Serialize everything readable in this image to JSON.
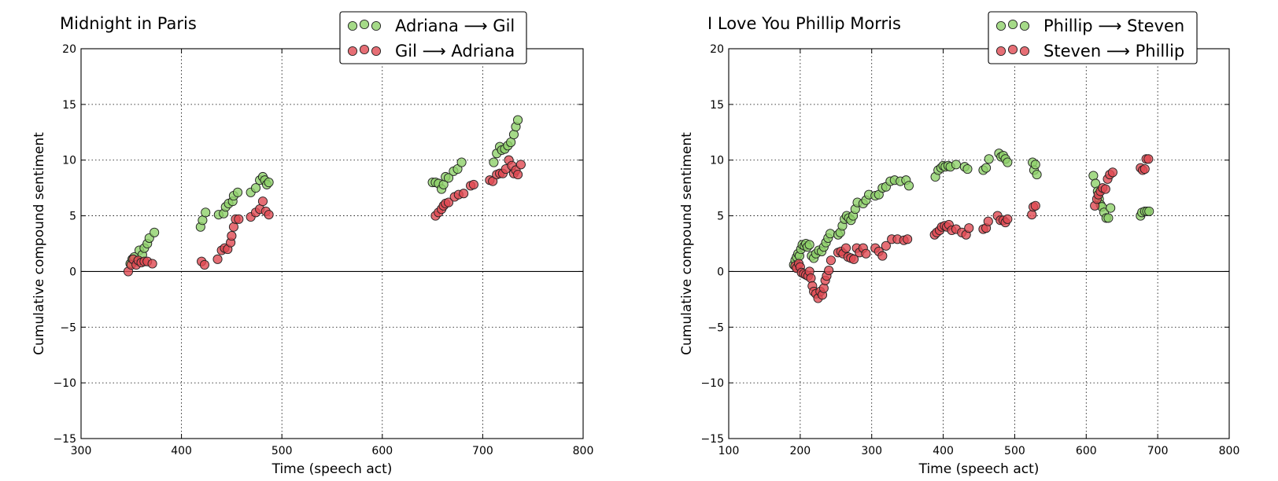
{
  "figure": {
    "background": "#ffffff",
    "series_colors": {
      "green": "#8fd16a",
      "red": "#e04a52"
    }
  },
  "chart_data": [
    {
      "type": "scatter",
      "title": "Midnight in Paris",
      "xlabel": "Time (speech act)",
      "ylabel": "Cumulative compound sentiment",
      "xlim": [
        300,
        800
      ],
      "ylim": [
        -15,
        20
      ],
      "xticks": [
        300,
        400,
        500,
        600,
        700,
        800
      ],
      "yticks": [
        -15,
        -10,
        -5,
        0,
        5,
        10,
        15,
        20
      ],
      "xtick_labels": [
        "300",
        "400",
        "500",
        "600",
        "700",
        "800"
      ],
      "ytick_labels": [
        "−15",
        "−10",
        "−5",
        "0",
        "5",
        "10",
        "15",
        "20"
      ],
      "grid": true,
      "zero_line": true,
      "legend_position": "upper-right",
      "series": [
        {
          "name": "Adriana ⟶ Gil",
          "color": "#8fd16a",
          "points": [
            [
              349,
              0.7
            ],
            [
              351,
              1.1
            ],
            [
              353,
              1.3
            ],
            [
              356,
              0.9
            ],
            [
              358,
              1.9
            ],
            [
              361,
              1.5
            ],
            [
              363,
              2.1
            ],
            [
              366,
              2.5
            ],
            [
              368,
              3.0
            ],
            [
              373,
              3.5
            ],
            [
              419,
              4.0
            ],
            [
              421,
              4.6
            ],
            [
              424,
              5.3
            ],
            [
              437,
              5.1
            ],
            [
              442,
              5.2
            ],
            [
              444,
              5.8
            ],
            [
              447,
              6.1
            ],
            [
              451,
              6.3
            ],
            [
              452,
              6.8
            ],
            [
              456,
              7.1
            ],
            [
              469,
              7.1
            ],
            [
              474,
              7.5
            ],
            [
              478,
              8.2
            ],
            [
              481,
              8.5
            ],
            [
              483,
              8.2
            ],
            [
              485,
              7.8
            ],
            [
              487,
              8.0
            ],
            [
              650,
              8.0
            ],
            [
              653,
              8.0
            ],
            [
              656,
              7.9
            ],
            [
              659,
              7.4
            ],
            [
              661,
              7.8
            ],
            [
              663,
              8.5
            ],
            [
              666,
              8.4
            ],
            [
              671,
              9.0
            ],
            [
              675,
              9.2
            ],
            [
              679,
              9.8
            ],
            [
              711,
              9.8
            ],
            [
              714,
              10.6
            ],
            [
              717,
              11.2
            ],
            [
              719,
              10.9
            ],
            [
              722,
              11.0
            ],
            [
              725,
              11.3
            ],
            [
              728,
              11.6
            ],
            [
              731,
              12.3
            ],
            [
              733,
              13.0
            ],
            [
              735,
              13.6
            ]
          ]
        },
        {
          "name": "Gil ⟶ Adriana",
          "color": "#e04a52",
          "points": [
            [
              347,
              0.0
            ],
            [
              350,
              0.6
            ],
            [
              352,
              1.1
            ],
            [
              355,
              0.6
            ],
            [
              357,
              1.0
            ],
            [
              360,
              0.8
            ],
            [
              363,
              0.9
            ],
            [
              366,
              0.9
            ],
            [
              371,
              0.7
            ],
            [
              420,
              0.9
            ],
            [
              423,
              0.6
            ],
            [
              436,
              1.1
            ],
            [
              440,
              1.9
            ],
            [
              443,
              2.1
            ],
            [
              446,
              2.0
            ],
            [
              449,
              2.6
            ],
            [
              450,
              3.2
            ],
            [
              452,
              4.0
            ],
            [
              454,
              4.7
            ],
            [
              457,
              4.7
            ],
            [
              469,
              4.9
            ],
            [
              474,
              5.3
            ],
            [
              478,
              5.6
            ],
            [
              481,
              6.3
            ],
            [
              484,
              5.4
            ],
            [
              487,
              5.1
            ],
            [
              653,
              5.0
            ],
            [
              656,
              5.3
            ],
            [
              659,
              5.6
            ],
            [
              661,
              5.9
            ],
            [
              663,
              6.1
            ],
            [
              666,
              6.2
            ],
            [
              672,
              6.7
            ],
            [
              676,
              6.9
            ],
            [
              681,
              7.0
            ],
            [
              688,
              7.7
            ],
            [
              691,
              7.8
            ],
            [
              707,
              8.2
            ],
            [
              710,
              8.1
            ],
            [
              714,
              8.7
            ],
            [
              717,
              8.8
            ],
            [
              720,
              8.8
            ],
            [
              723,
              9.2
            ],
            [
              726,
              10.0
            ],
            [
              729,
              9.5
            ],
            [
              731,
              8.8
            ],
            [
              733,
              9.1
            ],
            [
              735,
              8.7
            ],
            [
              738,
              9.6
            ]
          ]
        }
      ]
    },
    {
      "type": "scatter",
      "title": "I Love You Phillip Morris",
      "xlabel": "Time (speech act)",
      "ylabel": "Cumulative compound sentiment",
      "xlim": [
        100,
        800
      ],
      "ylim": [
        -15,
        20
      ],
      "xticks": [
        100,
        200,
        300,
        400,
        500,
        600,
        700,
        800
      ],
      "yticks": [
        -15,
        -10,
        -5,
        0,
        5,
        10,
        15,
        20
      ],
      "xtick_labels": [
        "100",
        "200",
        "300",
        "400",
        "500",
        "600",
        "700",
        "800"
      ],
      "ytick_labels": [
        "−15",
        "−10",
        "−5",
        "0",
        "5",
        "10",
        "15",
        "20"
      ],
      "grid": true,
      "zero_line": true,
      "legend_position": "upper-right",
      "series": [
        {
          "name": "Phillip ⟶ Steven",
          "color": "#8fd16a",
          "points": [
            [
              191,
              0.6
            ],
            [
              193,
              1.0
            ],
            [
              195,
              1.3
            ],
            [
              197,
              1.6
            ],
            [
              199,
              1.4
            ],
            [
              201,
              2.0
            ],
            [
              203,
              2.4
            ],
            [
              206,
              2.3
            ],
            [
              208,
              2.5
            ],
            [
              210,
              2.2
            ],
            [
              213,
              2.4
            ],
            [
              216,
              1.4
            ],
            [
              219,
              1.2
            ],
            [
              222,
              1.6
            ],
            [
              226,
              1.9
            ],
            [
              230,
              1.8
            ],
            [
              233,
              2.2
            ],
            [
              236,
              2.6
            ],
            [
              239,
              3.0
            ],
            [
              242,
              3.4
            ],
            [
              253,
              3.3
            ],
            [
              256,
              3.5
            ],
            [
              259,
              4.1
            ],
            [
              262,
              4.7
            ],
            [
              265,
              5.0
            ],
            [
              268,
              4.8
            ],
            [
              271,
              4.6
            ],
            [
              274,
              5.0
            ],
            [
              277,
              5.6
            ],
            [
              280,
              6.2
            ],
            [
              288,
              6.1
            ],
            [
              292,
              6.4
            ],
            [
              296,
              6.9
            ],
            [
              305,
              6.8
            ],
            [
              310,
              6.9
            ],
            [
              315,
              7.5
            ],
            [
              320,
              7.6
            ],
            [
              326,
              8.1
            ],
            [
              332,
              8.2
            ],
            [
              340,
              8.1
            ],
            [
              348,
              8.2
            ],
            [
              352,
              7.7
            ],
            [
              389,
              8.5
            ],
            [
              393,
              9.1
            ],
            [
              397,
              9.3
            ],
            [
              400,
              9.5
            ],
            [
              403,
              9.4
            ],
            [
              407,
              9.5
            ],
            [
              410,
              9.4
            ],
            [
              418,
              9.6
            ],
            [
              430,
              9.4
            ],
            [
              434,
              9.2
            ],
            [
              456,
              9.1
            ],
            [
              460,
              9.3
            ],
            [
              464,
              10.1
            ],
            [
              478,
              10.6
            ],
            [
              481,
              10.3
            ],
            [
              484,
              10.4
            ],
            [
              487,
              10.1
            ],
            [
              490,
              9.8
            ],
            [
              525,
              9.8
            ],
            [
              527,
              9.1
            ],
            [
              529,
              9.6
            ],
            [
              531,
              8.7
            ],
            [
              610,
              8.6
            ],
            [
              613,
              7.9
            ],
            [
              616,
              7.2
            ],
            [
              618,
              6.5
            ],
            [
              620,
              6.0
            ],
            [
              622,
              5.8
            ],
            [
              625,
              5.3
            ],
            [
              628,
              4.8
            ],
            [
              631,
              4.8
            ],
            [
              634,
              5.7
            ],
            [
              676,
              5.0
            ],
            [
              678,
              5.3
            ],
            [
              682,
              5.4
            ],
            [
              685,
              5.4
            ],
            [
              688,
              5.4
            ]
          ]
        },
        {
          "name": "Steven ⟶ Phillip",
          "color": "#e04a52",
          "points": [
            [
              193,
              0.5
            ],
            [
              195,
              0.3
            ],
            [
              198,
              0.7
            ],
            [
              200,
              0.4
            ],
            [
              202,
              -0.1
            ],
            [
              205,
              -0.2
            ],
            [
              208,
              -0.3
            ],
            [
              211,
              -0.4
            ],
            [
              213,
              0.0
            ],
            [
              215,
              -0.6
            ],
            [
              217,
              -1.3
            ],
            [
              219,
              -1.8
            ],
            [
              222,
              -2.0
            ],
            [
              225,
              -2.4
            ],
            [
              228,
              -1.8
            ],
            [
              231,
              -2.1
            ],
            [
              233,
              -1.5
            ],
            [
              235,
              -0.8
            ],
            [
              237,
              -0.4
            ],
            [
              240,
              0.1
            ],
            [
              243,
              1.0
            ],
            [
              253,
              1.7
            ],
            [
              257,
              1.8
            ],
            [
              260,
              1.6
            ],
            [
              264,
              2.1
            ],
            [
              267,
              1.3
            ],
            [
              271,
              1.2
            ],
            [
              275,
              1.1
            ],
            [
              279,
              2.1
            ],
            [
              283,
              1.7
            ],
            [
              288,
              2.1
            ],
            [
              292,
              1.6
            ],
            [
              305,
              2.1
            ],
            [
              310,
              1.8
            ],
            [
              315,
              1.4
            ],
            [
              320,
              2.3
            ],
            [
              328,
              2.9
            ],
            [
              336,
              2.9
            ],
            [
              345,
              2.8
            ],
            [
              350,
              2.9
            ],
            [
              388,
              3.3
            ],
            [
              391,
              3.5
            ],
            [
              395,
              3.7
            ],
            [
              398,
              4.0
            ],
            [
              402,
              4.1
            ],
            [
              405,
              4.0
            ],
            [
              408,
              4.2
            ],
            [
              412,
              3.7
            ],
            [
              418,
              3.8
            ],
            [
              426,
              3.5
            ],
            [
              432,
              3.3
            ],
            [
              436,
              3.9
            ],
            [
              456,
              3.8
            ],
            [
              460,
              3.9
            ],
            [
              463,
              4.5
            ],
            [
              476,
              5.0
            ],
            [
              480,
              4.6
            ],
            [
              484,
              4.6
            ],
            [
              487,
              4.4
            ],
            [
              490,
              4.7
            ],
            [
              524,
              5.1
            ],
            [
              526,
              5.8
            ],
            [
              529,
              5.9
            ],
            [
              612,
              5.9
            ],
            [
              615,
              6.5
            ],
            [
              617,
              6.9
            ],
            [
              620,
              7.2
            ],
            [
              623,
              7.5
            ],
            [
              627,
              7.4
            ],
            [
              630,
              8.3
            ],
            [
              633,
              8.7
            ],
            [
              637,
              8.9
            ],
            [
              676,
              9.3
            ],
            [
              679,
              9.1
            ],
            [
              682,
              9.2
            ],
            [
              684,
              10.1
            ],
            [
              687,
              10.1
            ]
          ]
        }
      ]
    }
  ]
}
